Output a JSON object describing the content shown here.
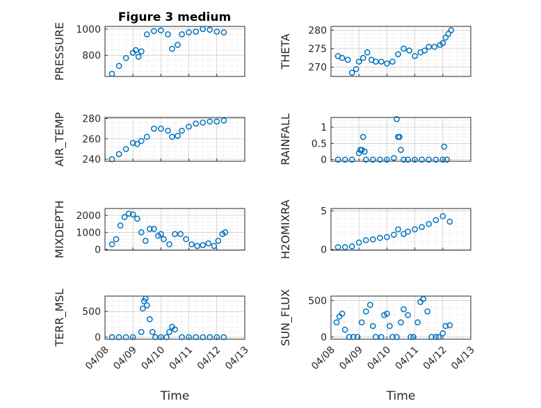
{
  "figure": {
    "title": "Figure 3 medium"
  },
  "colors": {
    "marker": "#0072bd",
    "axis": "#262626",
    "grid": "#bdbdbd"
  },
  "chart_data": [
    {
      "type": "scatter",
      "id": "pressure",
      "ylabel": "PRESSURE",
      "ylim": [
        640,
        1020
      ],
      "yticks": [
        800,
        1000
      ],
      "ytick_labels": [
        "800",
        "1000"
      ],
      "x": [
        8.25,
        8.5,
        8.75,
        9.0,
        9.1,
        9.2,
        9.3,
        9.5,
        9.75,
        10.0,
        10.25,
        10.4,
        10.6,
        10.75,
        11.0,
        11.25,
        11.5,
        11.75,
        12.0,
        12.25
      ],
      "y": [
        660,
        720,
        780,
        820,
        840,
        790,
        830,
        960,
        985,
        990,
        960,
        850,
        880,
        960,
        975,
        980,
        1000,
        995,
        980,
        975
      ]
    },
    {
      "type": "scatter",
      "id": "theta",
      "ylabel": "THETA",
      "ylim": [
        267.5,
        281
      ],
      "yticks": [
        270,
        275,
        280
      ],
      "ytick_labels": [
        "270",
        "275",
        "280"
      ],
      "x": [
        8.25,
        8.4,
        8.6,
        8.75,
        8.9,
        9.0,
        9.15,
        9.3,
        9.45,
        9.6,
        9.8,
        10.0,
        10.2,
        10.4,
        10.6,
        10.8,
        11.0,
        11.2,
        11.35,
        11.5,
        11.7,
        11.9,
        12.0,
        12.1,
        12.2,
        12.3
      ],
      "y": [
        273,
        272.5,
        272,
        268.5,
        269.5,
        271.5,
        272.5,
        274,
        272,
        271.5,
        271.5,
        271,
        271.5,
        273.5,
        275,
        274.5,
        273,
        274,
        274.5,
        275.5,
        275.5,
        276,
        276.5,
        278,
        279,
        280
      ]
    },
    {
      "type": "scatter",
      "id": "air_temp",
      "ylabel": "AIR_TEMP",
      "ylim": [
        238,
        281
      ],
      "yticks": [
        240,
        260,
        280
      ],
      "ytick_labels": [
        "240",
        "260",
        "280"
      ],
      "x": [
        8.25,
        8.5,
        8.75,
        9.0,
        9.15,
        9.3,
        9.5,
        9.75,
        10.0,
        10.25,
        10.4,
        10.6,
        10.75,
        11.0,
        11.25,
        11.5,
        11.75,
        12.0,
        12.25
      ],
      "y": [
        240,
        245,
        250,
        256,
        255,
        258,
        262,
        270,
        270,
        268,
        262,
        263,
        268,
        272,
        275,
        276,
        277,
        277,
        278
      ]
    },
    {
      "type": "scatter",
      "id": "rainfall",
      "ylabel": "RAINFALL",
      "ylim": [
        -0.05,
        1.3
      ],
      "yticks": [
        0,
        0.5,
        1
      ],
      "ytick_labels": [
        "0",
        "0.5",
        "1"
      ],
      "x": [
        8.25,
        8.5,
        8.75,
        9.0,
        9.05,
        9.1,
        9.15,
        9.2,
        9.25,
        9.5,
        9.75,
        10.0,
        10.25,
        10.35,
        10.4,
        10.45,
        10.5,
        10.6,
        10.75,
        11.0,
        11.25,
        11.5,
        11.75,
        12.0,
        12.05,
        12.15
      ],
      "y": [
        0,
        0,
        0,
        0.2,
        0.3,
        0.3,
        0.7,
        0.25,
        0,
        0,
        0,
        0,
        0.05,
        1.25,
        0.7,
        0.7,
        0.3,
        0,
        0,
        0,
        0,
        0,
        0,
        0,
        0.4,
        0
      ]
    },
    {
      "type": "scatter",
      "id": "mixdepth",
      "ylabel": "MIXDEPTH",
      "ylim": [
        -50,
        2400
      ],
      "yticks": [
        0,
        1000,
        2000
      ],
      "ytick_labels": [
        "0",
        "1000",
        "2000"
      ],
      "x": [
        8.25,
        8.4,
        8.55,
        8.7,
        8.85,
        9.0,
        9.15,
        9.3,
        9.45,
        9.6,
        9.75,
        9.9,
        10.0,
        10.1,
        10.3,
        10.5,
        10.7,
        10.9,
        11.1,
        11.3,
        11.5,
        11.7,
        11.9,
        12.05,
        12.2,
        12.3
      ],
      "y": [
        300,
        600,
        1400,
        1900,
        2100,
        2050,
        1800,
        1000,
        500,
        1200,
        1200,
        800,
        900,
        600,
        300,
        900,
        900,
        600,
        300,
        200,
        250,
        350,
        200,
        500,
        900,
        1000
      ]
    },
    {
      "type": "scatter",
      "id": "h2omixra",
      "ylabel": "H2OMIXRA",
      "ylim": [
        -0.1,
        5.3
      ],
      "yticks": [
        0,
        5
      ],
      "ytick_labels": [
        "0",
        "5"
      ],
      "x": [
        8.25,
        8.5,
        8.75,
        9.0,
        9.25,
        9.5,
        9.75,
        10.0,
        10.25,
        10.4,
        10.6,
        10.75,
        11.0,
        11.25,
        11.5,
        11.75,
        12.0,
        12.25
      ],
      "y": [
        0.3,
        0.3,
        0.4,
        0.9,
        1.2,
        1.3,
        1.5,
        1.6,
        1.9,
        2.6,
        2.0,
        2.3,
        2.6,
        2.9,
        3.3,
        3.8,
        4.3,
        3.6
      ]
    },
    {
      "type": "scatter",
      "id": "terr_msl",
      "ylabel": "TERR_MSL",
      "ylim": [
        -40,
        800
      ],
      "yticks": [
        0,
        500
      ],
      "ytick_labels": [
        "0",
        "500"
      ],
      "x": [
        8.25,
        8.5,
        8.75,
        9.0,
        9.3,
        9.35,
        9.4,
        9.45,
        9.5,
        9.6,
        9.7,
        9.8,
        10.0,
        10.2,
        10.3,
        10.4,
        10.5,
        10.75,
        11.0,
        11.25,
        11.5,
        11.75,
        12.0,
        12.25
      ],
      "y": [
        0,
        0,
        0,
        0,
        100,
        560,
        700,
        750,
        620,
        350,
        100,
        0,
        0,
        0,
        100,
        200,
        150,
        0,
        0,
        0,
        0,
        0,
        0,
        0
      ]
    },
    {
      "type": "scatter",
      "id": "sun_flux",
      "ylabel": "SUN_FLUX",
      "ylim": [
        -30,
        560
      ],
      "yticks": [
        0,
        500
      ],
      "ytick_labels": [
        "0",
        "500"
      ],
      "x": [
        8.2,
        8.3,
        8.4,
        8.5,
        8.65,
        8.8,
        8.95,
        9.1,
        9.25,
        9.4,
        9.5,
        9.6,
        9.8,
        9.9,
        10.0,
        10.1,
        10.2,
        10.35,
        10.5,
        10.6,
        10.75,
        10.85,
        10.95,
        11.1,
        11.2,
        11.3,
        11.45,
        11.6,
        11.75,
        11.85,
        12.0,
        12.1,
        12.25
      ],
      "y": [
        200,
        280,
        320,
        100,
        0,
        0,
        0,
        200,
        350,
        440,
        150,
        0,
        0,
        300,
        320,
        150,
        0,
        0,
        200,
        380,
        300,
        0,
        0,
        200,
        480,
        520,
        350,
        0,
        0,
        0,
        50,
        150,
        160
      ]
    }
  ],
  "x_axis": {
    "xlim": [
      8.0,
      13.0
    ],
    "ticks": [
      8,
      9,
      10,
      11,
      12,
      13
    ],
    "tick_labels": [
      "04/08",
      "04/09",
      "04/10",
      "04/11",
      "04/12",
      "04/13"
    ],
    "xlabel": "Time"
  },
  "ylabels_render": {
    "pressure": "PRESSURE",
    "theta": "THETA",
    "air_temp": "AIR_TEMP",
    "rainfall": "RAINFALL",
    "mixdepth": "MIXDEPTH",
    "h2omixra": "H2OMIXRA",
    "terr_msl": "TERR_MSL",
    "sun_flux": "SUN_FLUX"
  }
}
